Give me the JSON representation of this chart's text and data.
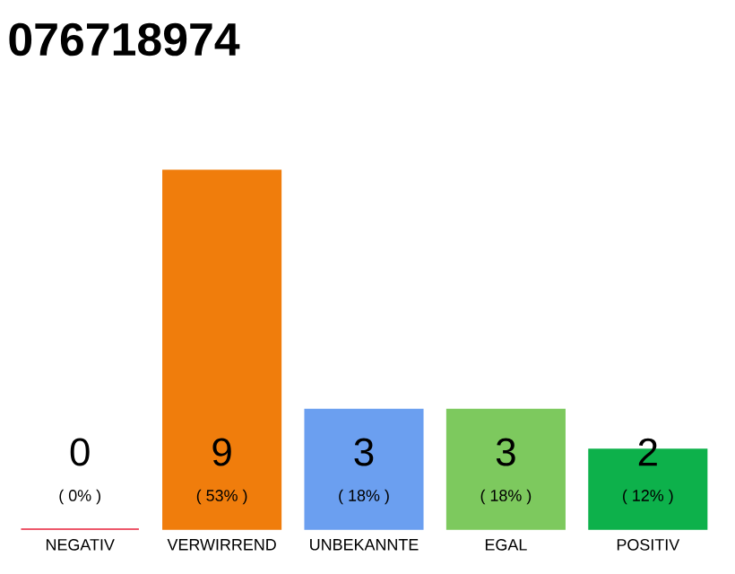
{
  "chart_data": {
    "type": "bar",
    "title": "076718974",
    "categories": [
      "NEGATIV",
      "VERWIRREND",
      "UNBEKANNTE",
      "EGAL",
      "POSITIV"
    ],
    "values": [
      0,
      9,
      3,
      3,
      2
    ],
    "colors": [
      "#e8233c",
      "#f07d0c",
      "#6b9ff0",
      "#7dc95e",
      "#0db14b"
    ],
    "data_labels": true,
    "annotations": [
      "( 0% )",
      "( 53% )",
      "( 18% )",
      "( 18% )",
      "( 12% )"
    ]
  }
}
